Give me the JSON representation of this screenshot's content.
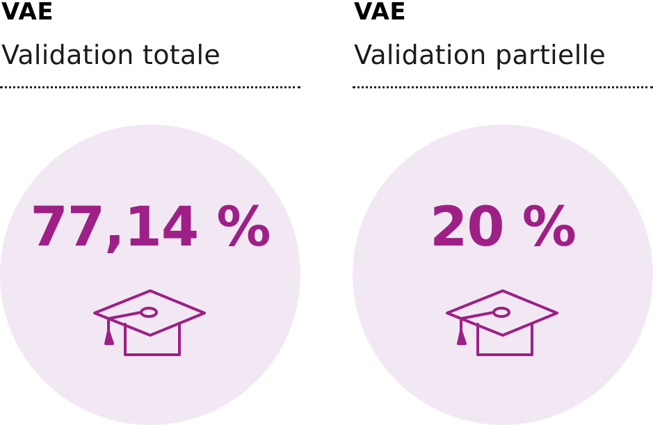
{
  "colors": {
    "accent": "#9e1f86",
    "disc": "#f2e8f4",
    "text": "#111111"
  },
  "stats": [
    {
      "kicker": "VAE",
      "label": "Validation totale",
      "value": "77,14 %",
      "icon": "graduation-cap-icon"
    },
    {
      "kicker": "VAE",
      "label": "Validation partielle",
      "value": "20 %",
      "icon": "graduation-cap-icon"
    }
  ]
}
